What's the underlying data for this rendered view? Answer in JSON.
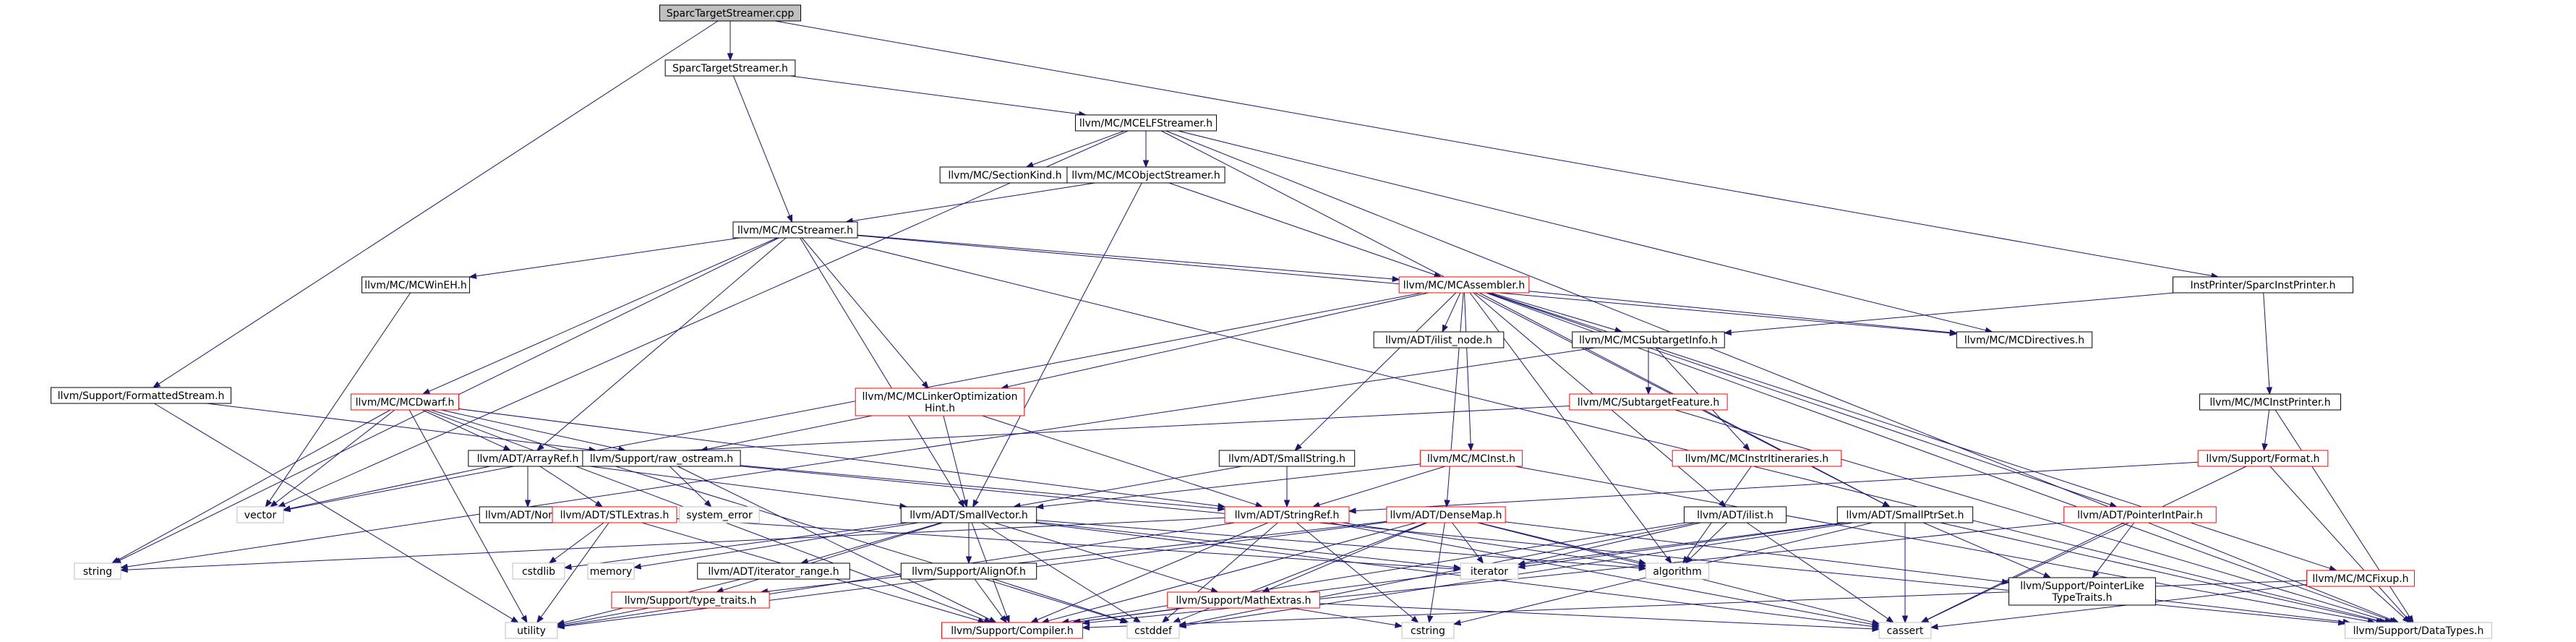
{
  "colors": {
    "edge": "#191970",
    "text": "#000000",
    "root_fill": "#bfbfbf",
    "border_black": "#000000",
    "border_red": "#ff0000",
    "border_gray": "#bfbfbf",
    "node_fill": "#ffffff"
  },
  "nodes": [
    {
      "id": "root",
      "label": "SparcTargetStreamer.cpp",
      "kind": "root"
    },
    {
      "id": "sts_h",
      "label": "SparcTargetStreamer.h",
      "kind": "normal"
    },
    {
      "id": "formatted",
      "label": "llvm/Support/FormattedStream.h",
      "kind": "normal"
    },
    {
      "id": "instprinter",
      "label": "InstPrinter/SparcInstPrinter.h",
      "kind": "normal"
    },
    {
      "id": "mcelf",
      "label": "llvm/MC/MCELFStreamer.h",
      "kind": "normal"
    },
    {
      "id": "sectionkind",
      "label": "llvm/MC/SectionKind.h",
      "kind": "normal"
    },
    {
      "id": "mcobjstream",
      "label": "llvm/MC/MCObjectStreamer.h",
      "kind": "normal"
    },
    {
      "id": "mcstreamer",
      "label": "llvm/MC/MCStreamer.h",
      "kind": "normal"
    },
    {
      "id": "mcwineh",
      "label": "llvm/MC/MCWinEH.h",
      "kind": "normal"
    },
    {
      "id": "mcassembler",
      "label": "llvm/MC/MCAssembler.h",
      "kind": "red"
    },
    {
      "id": "ilist_node",
      "label": "llvm/ADT/ilist_node.h",
      "kind": "normal"
    },
    {
      "id": "mcsubtarget",
      "label": "llvm/MC/MCSubtargetInfo.h",
      "kind": "normal"
    },
    {
      "id": "mcdirectives",
      "label": "llvm/MC/MCDirectives.h",
      "kind": "normal"
    },
    {
      "id": "mcinstprinter",
      "label": "llvm/MC/MCInstPrinter.h",
      "kind": "normal"
    },
    {
      "id": "mcdwarf",
      "label": "llvm/MC/MCDwarf.h",
      "kind": "red"
    },
    {
      "id": "mclinker",
      "label": "llvm/MC/MCLinkerOptimization",
      "label2": "Hint.h",
      "kind": "red"
    },
    {
      "id": "subtargetfeature",
      "label": "llvm/MC/SubtargetFeature.h",
      "kind": "red"
    },
    {
      "id": "mcinstritin",
      "label": "llvm/MC/MCInstrItineraries.h",
      "kind": "red"
    },
    {
      "id": "support_format",
      "label": "llvm/Support/Format.h",
      "kind": "red"
    },
    {
      "id": "arrayref",
      "label": "llvm/ADT/ArrayRef.h",
      "kind": "normal"
    },
    {
      "id": "raw_ostream",
      "label": "llvm/Support/raw_ostream.h",
      "kind": "normal"
    },
    {
      "id": "smallstring",
      "label": "llvm/ADT/SmallString.h",
      "kind": "normal"
    },
    {
      "id": "mcinst",
      "label": "llvm/MC/MCInst.h",
      "kind": "red"
    },
    {
      "id": "vector",
      "label": "vector",
      "kind": "gray"
    },
    {
      "id": "none",
      "label": "llvm/ADT/None.h",
      "kind": "normal"
    },
    {
      "id": "stlextras",
      "label": "llvm/ADT/STLExtras.h",
      "kind": "red"
    },
    {
      "id": "system_error",
      "label": "system_error",
      "kind": "gray"
    },
    {
      "id": "smallvector",
      "label": "llvm/ADT/SmallVector.h",
      "kind": "normal"
    },
    {
      "id": "stringref",
      "label": "llvm/ADT/StringRef.h",
      "kind": "red"
    },
    {
      "id": "densemap",
      "label": "llvm/ADT/DenseMap.h",
      "kind": "red"
    },
    {
      "id": "ilist",
      "label": "llvm/ADT/ilist.h",
      "kind": "normal"
    },
    {
      "id": "smallptrset",
      "label": "llvm/ADT/SmallPtrSet.h",
      "kind": "normal"
    },
    {
      "id": "pointerintpair",
      "label": "llvm/ADT/PointerIntPair.h",
      "kind": "red"
    },
    {
      "id": "mcfixup",
      "label": "llvm/MC/MCFixup.h",
      "kind": "red"
    },
    {
      "id": "string",
      "label": "string",
      "kind": "gray"
    },
    {
      "id": "cstdlib",
      "label": "cstdlib",
      "kind": "gray"
    },
    {
      "id": "memory",
      "label": "memory",
      "kind": "gray"
    },
    {
      "id": "iterator_range",
      "label": "llvm/ADT/iterator_range.h",
      "kind": "normal"
    },
    {
      "id": "type_traits",
      "label": "llvm/Support/type_traits.h",
      "kind": "red"
    },
    {
      "id": "alignof",
      "label": "llvm/Support/AlignOf.h",
      "kind": "normal"
    },
    {
      "id": "mathextras",
      "label": "llvm/Support/MathExtras.h",
      "kind": "red"
    },
    {
      "id": "iterator",
      "label": "iterator",
      "kind": "gray"
    },
    {
      "id": "algorithm",
      "label": "algorithm",
      "kind": "gray"
    },
    {
      "id": "ptrliketypetraits",
      "label": "llvm/Support/PointerLike",
      "label2": "TypeTraits.h",
      "kind": "normal"
    },
    {
      "id": "utility",
      "label": "utility",
      "kind": "gray"
    },
    {
      "id": "compiler",
      "label": "llvm/Support/Compiler.h",
      "kind": "red"
    },
    {
      "id": "cstddef",
      "label": "cstddef",
      "kind": "gray"
    },
    {
      "id": "cstring",
      "label": "cstring",
      "kind": "gray"
    },
    {
      "id": "cassert",
      "label": "cassert",
      "kind": "gray"
    },
    {
      "id": "datatypes",
      "label": "llvm/Support/DataTypes.h",
      "kind": "gray"
    }
  ],
  "edges": [
    [
      "root",
      "sts_h"
    ],
    [
      "root",
      "formatted"
    ],
    [
      "root",
      "instprinter"
    ],
    [
      "sts_h",
      "mcelf"
    ],
    [
      "sts_h",
      "mcstreamer"
    ],
    [
      "formatted",
      "raw_ostream"
    ],
    [
      "formatted",
      "utility"
    ],
    [
      "instprinter",
      "mcsubtarget"
    ],
    [
      "instprinter",
      "mcinstprinter"
    ],
    [
      "mcelf",
      "sectionkind"
    ],
    [
      "mcelf",
      "mcobjstream"
    ],
    [
      "mcelf",
      "smallptrset"
    ],
    [
      "mcelf",
      "mcdirectives"
    ],
    [
      "mcelf",
      "vector"
    ],
    [
      "mcelf",
      "datatypes"
    ],
    [
      "mcobjstream",
      "mcstreamer"
    ],
    [
      "mcobjstream",
      "mcassembler"
    ],
    [
      "mcobjstream",
      "smallvector"
    ],
    [
      "mcstreamer",
      "mcwineh"
    ],
    [
      "mcstreamer",
      "mcassembler"
    ],
    [
      "mcstreamer",
      "mcdwarf"
    ],
    [
      "mcstreamer",
      "mclinker"
    ],
    [
      "mcstreamer",
      "arrayref"
    ],
    [
      "mcstreamer",
      "smallvector"
    ],
    [
      "mcstreamer",
      "mcdirectives"
    ],
    [
      "mcstreamer",
      "datatypes"
    ],
    [
      "mcstreamer",
      "string"
    ],
    [
      "mcwineh",
      "vector"
    ],
    [
      "mcassembler",
      "ilist_node"
    ],
    [
      "mcassembler",
      "mcsubtarget"
    ],
    [
      "mcassembler",
      "mcdirectives"
    ],
    [
      "mcassembler",
      "mclinker"
    ],
    [
      "mcassembler",
      "smallstring"
    ],
    [
      "mcassembler",
      "mcinst"
    ],
    [
      "mcassembler",
      "densemap"
    ],
    [
      "mcassembler",
      "ilist"
    ],
    [
      "mcassembler",
      "smallptrset"
    ],
    [
      "mcassembler",
      "pointerintpair"
    ],
    [
      "mcassembler",
      "mcfixup"
    ],
    [
      "mcassembler",
      "vector"
    ],
    [
      "mcassembler",
      "algorithm"
    ],
    [
      "mcassembler",
      "datatypes"
    ],
    [
      "mcsubtarget",
      "subtargetfeature"
    ],
    [
      "mcsubtarget",
      "mcinstritin"
    ],
    [
      "mcsubtarget",
      "string"
    ],
    [
      "mcinstprinter",
      "support_format"
    ],
    [
      "mcinstprinter",
      "datatypes"
    ],
    [
      "mcdwarf",
      "arrayref"
    ],
    [
      "mcdwarf",
      "raw_ostream"
    ],
    [
      "mcdwarf",
      "stringref"
    ],
    [
      "mcdwarf",
      "vector"
    ],
    [
      "mcdwarf",
      "string"
    ],
    [
      "mcdwarf",
      "utility"
    ],
    [
      "mcdwarf",
      "compiler"
    ],
    [
      "mcdwarf",
      "cstddef"
    ],
    [
      "mclinker",
      "raw_ostream"
    ],
    [
      "mclinker",
      "smallvector"
    ],
    [
      "mclinker",
      "stringref"
    ],
    [
      "subtargetfeature",
      "arrayref"
    ],
    [
      "subtargetfeature",
      "datatypes"
    ],
    [
      "mcinstritin",
      "algorithm"
    ],
    [
      "support_format",
      "stringref"
    ],
    [
      "support_format",
      "cassert"
    ],
    [
      "support_format",
      "datatypes"
    ],
    [
      "arrayref",
      "vector"
    ],
    [
      "arrayref",
      "none"
    ],
    [
      "arrayref",
      "stlextras"
    ],
    [
      "arrayref",
      "smallvector"
    ],
    [
      "raw_ostream",
      "stringref"
    ],
    [
      "raw_ostream",
      "system_error"
    ],
    [
      "raw_ostream",
      "datatypes"
    ],
    [
      "raw_ostream",
      "compiler"
    ],
    [
      "smallstring",
      "smallvector"
    ],
    [
      "smallstring",
      "stringref"
    ],
    [
      "mcinst",
      "stringref"
    ],
    [
      "mcinst",
      "smallvector"
    ],
    [
      "mcinst",
      "datatypes"
    ],
    [
      "stlextras",
      "cstdlib"
    ],
    [
      "stlextras",
      "iterator"
    ],
    [
      "stlextras",
      "utility"
    ],
    [
      "stlextras",
      "compiler"
    ],
    [
      "smallvector",
      "iterator_range"
    ],
    [
      "smallvector",
      "type_traits"
    ],
    [
      "smallvector",
      "alignof"
    ],
    [
      "smallvector",
      "mathextras"
    ],
    [
      "smallvector",
      "algorithm"
    ],
    [
      "smallvector",
      "iterator"
    ],
    [
      "smallvector",
      "memory"
    ],
    [
      "smallvector",
      "cstdlib"
    ],
    [
      "smallvector",
      "cstddef"
    ],
    [
      "smallvector",
      "compiler"
    ],
    [
      "smallvector",
      "cassert"
    ],
    [
      "stringref",
      "algorithm"
    ],
    [
      "stringref",
      "string"
    ],
    [
      "stringref",
      "utility"
    ],
    [
      "stringref",
      "compiler"
    ],
    [
      "stringref",
      "cstring"
    ],
    [
      "stringref",
      "cassert"
    ],
    [
      "stringref",
      "cstddef"
    ],
    [
      "densemap",
      "type_traits"
    ],
    [
      "densemap",
      "mathextras"
    ],
    [
      "densemap",
      "ptrliketypetraits"
    ],
    [
      "densemap",
      "algorithm"
    ],
    [
      "densemap",
      "iterator"
    ],
    [
      "densemap",
      "utility"
    ],
    [
      "densemap",
      "compiler"
    ],
    [
      "densemap",
      "cstddef"
    ],
    [
      "densemap",
      "cstring"
    ],
    [
      "densemap",
      "cassert"
    ],
    [
      "ilist",
      "iterator"
    ],
    [
      "ilist",
      "algorithm"
    ],
    [
      "ilist",
      "compiler"
    ],
    [
      "ilist",
      "cstddef"
    ],
    [
      "ilist",
      "cassert"
    ],
    [
      "smallptrset",
      "ptrliketypetraits"
    ],
    [
      "smallptrset",
      "iterator"
    ],
    [
      "smallptrset",
      "compiler"
    ],
    [
      "smallptrset",
      "cstddef"
    ],
    [
      "smallptrset",
      "cstring"
    ],
    [
      "smallptrset",
      "cassert"
    ],
    [
      "smallptrset",
      "datatypes"
    ],
    [
      "pointerintpair",
      "ptrliketypetraits"
    ],
    [
      "pointerintpair",
      "compiler"
    ],
    [
      "pointerintpair",
      "cassert"
    ],
    [
      "mcfixup",
      "datatypes"
    ],
    [
      "mcfixup",
      "cassert"
    ],
    [
      "mcfixup",
      "compiler"
    ],
    [
      "type_traits",
      "utility"
    ],
    [
      "alignof",
      "compiler"
    ],
    [
      "alignof",
      "cstddef"
    ],
    [
      "mathextras",
      "compiler"
    ],
    [
      "mathextras",
      "cstring"
    ],
    [
      "mathextras",
      "cassert"
    ],
    [
      "iterator_range",
      "utility"
    ],
    [
      "ptrliketypetraits",
      "datatypes"
    ]
  ]
}
